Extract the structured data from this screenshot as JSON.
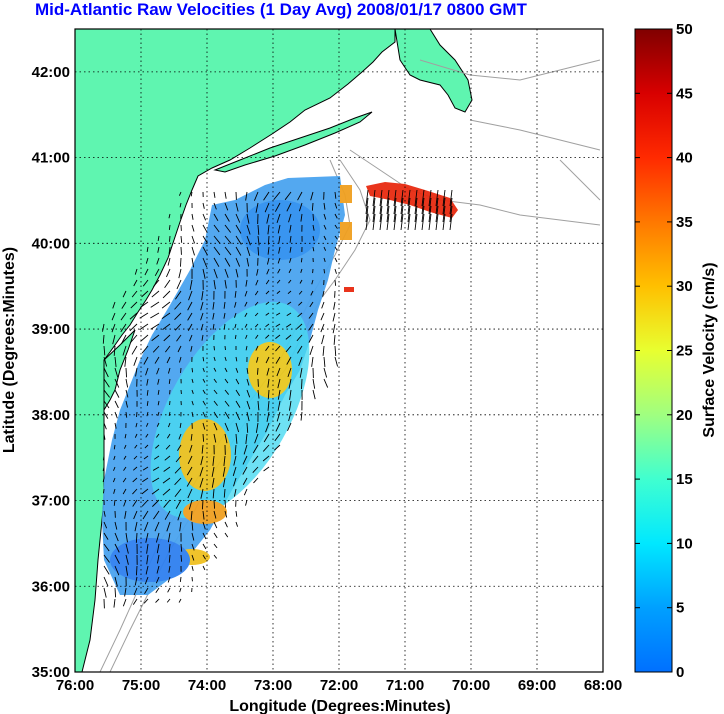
{
  "title": "Mid-Atlantic Raw Velocities (1 Day Avg) 2008/01/17 0800 GMT",
  "map": {
    "xlabel": "Longitude (Degrees:Minutes)",
    "ylabel": "Latitude (Degrees:Minutes)",
    "x_ticks": [
      "76:00",
      "75:00",
      "74:00",
      "73:00",
      "72:00",
      "71:00",
      "70:00",
      "69:00",
      "68:00"
    ],
    "y_ticks": [
      "42:00",
      "41:00",
      "40:00",
      "39:00",
      "38:00",
      "37:00",
      "36:00",
      "35:00"
    ],
    "xlim": [
      -76,
      -68
    ],
    "ylim": [
      35,
      42.5
    ],
    "grid": true,
    "land_color": "#5ff5b0",
    "coast_color": "#000000",
    "bathymetry_color": "#a0a0a0"
  },
  "colorbar": {
    "label": "Surface Velocity (cm/s)",
    "ticks": [
      "50",
      "45",
      "40",
      "35",
      "30",
      "25",
      "20",
      "15",
      "10",
      "5",
      "0"
    ],
    "range": [
      0,
      50
    ],
    "colormap": "jet"
  }
}
